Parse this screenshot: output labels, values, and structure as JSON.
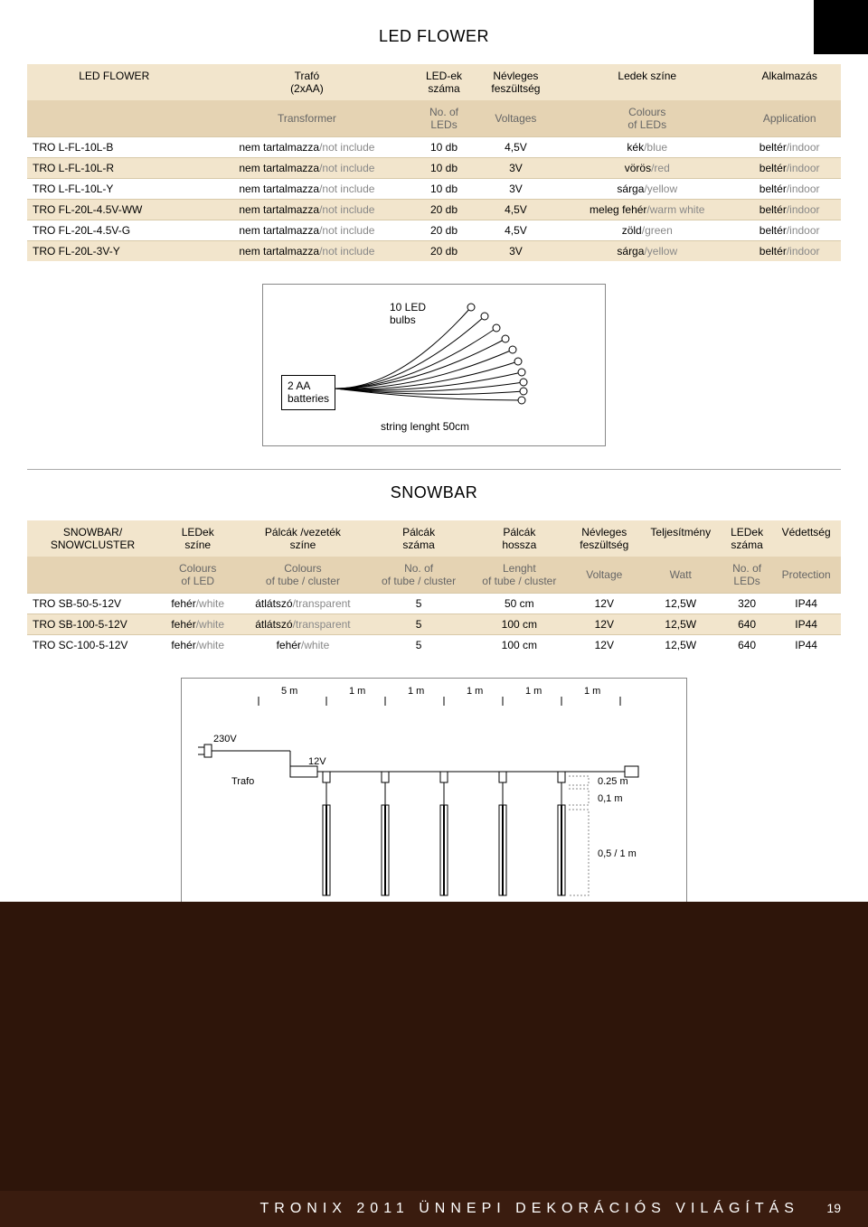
{
  "ledflower": {
    "title": "LED FLOWER",
    "headers1": [
      "LED FLOWER",
      "Trafó\n(2xAA)",
      "LED-ek\nszáma",
      "Névleges\nfeszültség",
      "Ledek színe",
      "Alkalmazás"
    ],
    "headers2": [
      "",
      "Transformer",
      "No. of\nLEDs",
      "Voltages",
      "Colours\nof LEDs",
      "Application"
    ],
    "rows": [
      {
        "code": "TRO L-FL-10L-B",
        "trafo_hu": "nem tartalmazza",
        "trafo_en": "not include",
        "leds": "10 db",
        "volt": "4,5V",
        "colour_hu": "kék",
        "colour_en": "blue",
        "app_hu": "beltér",
        "app_en": "indoor"
      },
      {
        "code": "TRO L-FL-10L-R",
        "trafo_hu": "nem tartalmazza",
        "trafo_en": "not include",
        "leds": "10 db",
        "volt": "3V",
        "colour_hu": "vörös",
        "colour_en": "red",
        "app_hu": "beltér",
        "app_en": "indoor"
      },
      {
        "code": "TRO L-FL-10L-Y",
        "trafo_hu": "nem tartalmazza",
        "trafo_en": "not include",
        "leds": "10 db",
        "volt": "3V",
        "colour_hu": "sárga",
        "colour_en": "yellow",
        "app_hu": "beltér",
        "app_en": "indoor"
      },
      {
        "code": "TRO FL-20L-4.5V-WW",
        "trafo_hu": "nem tartalmazza",
        "trafo_en": "not include",
        "leds": "20 db",
        "volt": "4,5V",
        "colour_hu": "meleg fehér",
        "colour_en": "warm white",
        "app_hu": "beltér",
        "app_en": "indoor"
      },
      {
        "code": "TRO FL-20L-4.5V-G",
        "trafo_hu": "nem tartalmazza",
        "trafo_en": "not include",
        "leds": "20 db",
        "volt": "4,5V",
        "colour_hu": "zöld",
        "colour_en": "green",
        "app_hu": "beltér",
        "app_en": "indoor"
      },
      {
        "code": "TRO FL-20L-3V-Y",
        "trafo_hu": "nem tartalmazza",
        "trafo_en": "not include",
        "leds": "20 db",
        "volt": "3V",
        "colour_hu": "sárga",
        "colour_en": "yellow",
        "app_hu": "beltér",
        "app_en": "indoor"
      }
    ],
    "diagram": {
      "battery_line1": "2 AA",
      "battery_line2": "batteries",
      "bulbs_line1": "10 LED",
      "bulbs_line2": "bulbs",
      "string_length": "string lenght 50cm"
    }
  },
  "snowbar": {
    "title": "SNOWBAR",
    "headers1": [
      "SNOWBAR/\nSNOWCLUSTER",
      "LEDek\nszíne",
      "Pálcák /vezeték\nszíne",
      "Pálcák\nszáma",
      "Pálcák\nhossza",
      "Névleges\nfeszültség",
      "Teljesítmény",
      "LEDek\nszáma",
      "Védettség"
    ],
    "headers2": [
      "",
      "Colours\nof LED",
      "Colours\nof tube / cluster",
      "No. of\nof tube / cluster",
      "Lenght\nof tube / cluster",
      "Voltage",
      "Watt",
      "No. of\nLEDs",
      "Protection"
    ],
    "rows": [
      {
        "code": "TRO SB-50-5-12V",
        "ledc_hu": "fehér",
        "ledc_en": "white",
        "tubec_hu": "átlátszó",
        "tubec_en": "transparent",
        "n": "5",
        "len": "50 cm",
        "volt": "12V",
        "watt": "12,5W",
        "leds": "320",
        "prot": "IP44"
      },
      {
        "code": "TRO SB-100-5-12V",
        "ledc_hu": "fehér",
        "ledc_en": "white",
        "tubec_hu": "átlátszó",
        "tubec_en": "transparent",
        "n": "5",
        "len": "100 cm",
        "volt": "12V",
        "watt": "12,5W",
        "leds": "640",
        "prot": "IP44"
      },
      {
        "code": "TRO SC-100-5-12V",
        "ledc_hu": "fehér",
        "ledc_en": "white",
        "tubec_hu": "fehér",
        "tubec_en": "white",
        "n": "5",
        "len": "100 cm",
        "volt": "12V",
        "watt": "12,5W",
        "leds": "640",
        "prot": "IP44"
      }
    ],
    "diagram": {
      "spacing": [
        "5 m",
        "1 m",
        "1 m",
        "1 m",
        "1 m",
        "1 m"
      ],
      "v230": "230V",
      "v12": "12V",
      "trafo": "Trafo",
      "d1": "0.25 m",
      "d2": "0,1 m",
      "d3": "0,5 / 1 m"
    }
  },
  "footer": {
    "text": "TRONIX 2011 ÜNNEPI DEKORÁCIÓS VILÁGÍTÁS",
    "page": "19"
  },
  "style": {
    "header1_bg": "#f2e5cc",
    "header2_bg": "#e5d3b3",
    "row_alt_bg": "#f2e5cc",
    "gray_text": "#888888",
    "footer_band": "#2e150a",
    "footer_bar": "#3a1c0f"
  }
}
